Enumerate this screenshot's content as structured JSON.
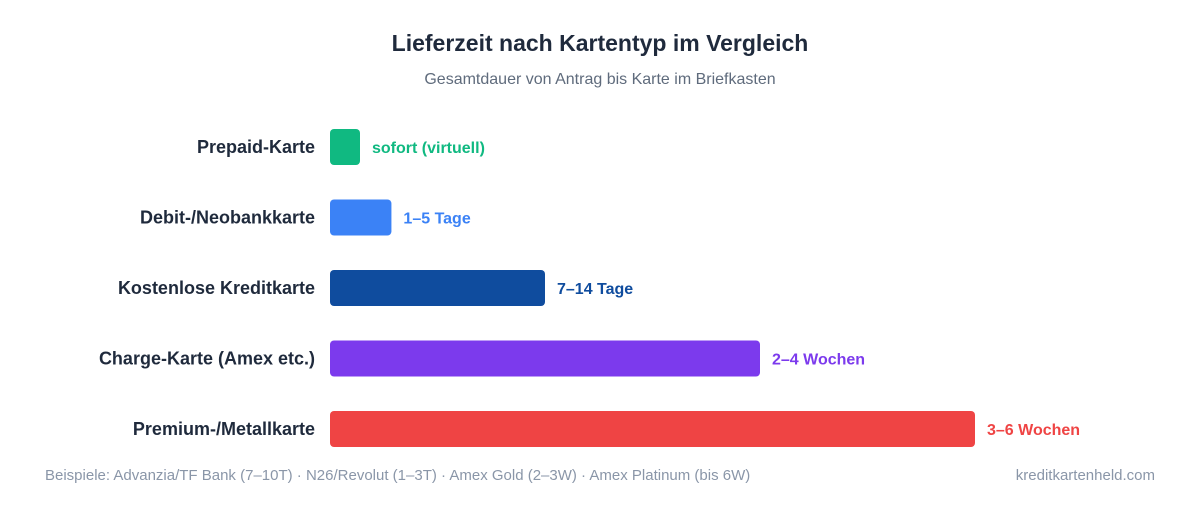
{
  "chart_data": {
    "type": "bar",
    "orientation": "horizontal",
    "title": "Lieferzeit nach Kartentyp im Vergleich",
    "subtitle": "Gesamtdauer von Antrag bis Karte im Briefkasten",
    "categories": [
      "Prepaid-Karte",
      "Debit-/Neobankkarte",
      "Kostenlose Kreditkarte",
      "Charge-Karte (Amex etc.)",
      "Premium-/Metallkarte"
    ],
    "values": [
      0.3,
      3,
      10.5,
      21,
      31.5
    ],
    "value_unit": "Tage",
    "data_labels": [
      "sofort (virtuell)",
      "1–5 Tage",
      "7–14 Tage",
      "2–4 Wochen",
      "3–6 Wochen"
    ],
    "colors": [
      "#10b981",
      "#3b82f6",
      "#0f4c9e",
      "#7c3aed",
      "#ef4444"
    ],
    "xlim": [
      0,
      31.5
    ],
    "grid": false,
    "xaxis_visible": false
  },
  "footer": {
    "note": "Beispiele: Advanzia/TF Bank (7–10T) · N26/Revolut (1–3T) · Amex Gold (2–3W) · Amex Platinum (bis 6W)",
    "source": "kreditkartenheld.com"
  }
}
